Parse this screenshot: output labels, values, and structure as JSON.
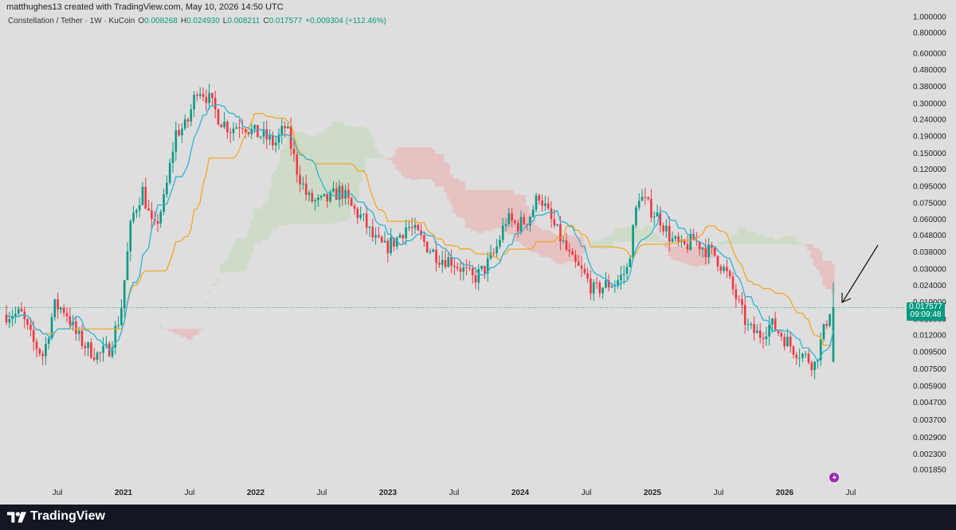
{
  "header": {
    "credit": "matthughes13 created with TradingView.com, May 10, 2026 14:50 UTC"
  },
  "legend": {
    "symbol": "Constellation / Tether · 1W · KuCoin",
    "o_label": "O",
    "o_value": "0.008268",
    "h_label": "H",
    "h_value": "0.024930",
    "l_label": "L",
    "l_value": "0.008211",
    "c_label": "C",
    "c_value": "0.017577",
    "change": "+0.009304 (+112.46%)"
  },
  "price_tag": {
    "price": "0.017577",
    "countdown": "09:09:48"
  },
  "footer": {
    "brand": "TradingView"
  },
  "colors": {
    "up": "#089981",
    "down": "#f23645",
    "tenkan": "#2bb3d6",
    "kijun": "#f5a623",
    "cloud_bear": "#e8b8b8",
    "cloud_bull": "#c8d9c0",
    "arrow": "#111111"
  },
  "chart_data": {
    "type": "candlestick",
    "scale": "log",
    "ylim": [
      0.0017,
      1.0
    ],
    "y_ticks": [
      "1.000000",
      "0.800000",
      "0.600000",
      "0.480000",
      "0.380000",
      "0.300000",
      "0.240000",
      "0.190000",
      "0.150000",
      "0.120000",
      "0.095000",
      "0.075000",
      "0.060000",
      "0.048000",
      "0.038000",
      "0.030000",
      "0.024000",
      "0.019000",
      "0.015000",
      "0.012000",
      "0.009500",
      "0.007500",
      "0.005900",
      "0.004700",
      "0.003700",
      "0.002900",
      "0.002300",
      "0.001850"
    ],
    "x_ticks": [
      {
        "label": "Jul",
        "date": "2020-07"
      },
      {
        "label": "2021",
        "date": "2021-01",
        "year": true
      },
      {
        "label": "Jul",
        "date": "2021-07"
      },
      {
        "label": "2022",
        "date": "2022-01",
        "year": true
      },
      {
        "label": "Jul",
        "date": "2022-07"
      },
      {
        "label": "2023",
        "date": "2023-01",
        "year": true
      },
      {
        "label": "Jul",
        "date": "2023-07"
      },
      {
        "label": "2024",
        "date": "2024-01",
        "year": true
      },
      {
        "label": "Jul",
        "date": "2024-07"
      },
      {
        "label": "2025",
        "date": "2025-01",
        "year": true
      },
      {
        "label": "Jul",
        "date": "2025-07"
      },
      {
        "label": "2026",
        "date": "2026-01",
        "year": true
      },
      {
        "label": "Jul",
        "date": "2026-07"
      }
    ],
    "price_path": [
      [
        "2020-04",
        0.016
      ],
      [
        "2020-05",
        0.011
      ],
      [
        "2020-06",
        0.009
      ],
      [
        "2020-07",
        0.018
      ],
      [
        "2020-08",
        0.017
      ],
      [
        "2020-09",
        0.012
      ],
      [
        "2020-10",
        0.01
      ],
      [
        "2020-11",
        0.009
      ],
      [
        "2020-12",
        0.01
      ],
      [
        "2021-01",
        0.016
      ],
      [
        "2021-02",
        0.06
      ],
      [
        "2021-03",
        0.09
      ],
      [
        "2021-04",
        0.05
      ],
      [
        "2021-05",
        0.08
      ],
      [
        "2021-06",
        0.2
      ],
      [
        "2021-07",
        0.22
      ],
      [
        "2021-08",
        0.38
      ],
      [
        "2021-09",
        0.32
      ],
      [
        "2021-10",
        0.24
      ],
      [
        "2021-11",
        0.21
      ],
      [
        "2021-12",
        0.23
      ],
      [
        "2022-01",
        0.2
      ],
      [
        "2022-02",
        0.19
      ],
      [
        "2022-03",
        0.17
      ],
      [
        "2022-04",
        0.22
      ],
      [
        "2022-05",
        0.12
      ],
      [
        "2022-06",
        0.08
      ],
      [
        "2022-07",
        0.075
      ],
      [
        "2022-08",
        0.08
      ],
      [
        "2022-09",
        0.09
      ],
      [
        "2022-10",
        0.07
      ],
      [
        "2022-11",
        0.06
      ],
      [
        "2022-12",
        0.045
      ],
      [
        "2023-01",
        0.04
      ],
      [
        "2023-02",
        0.045
      ],
      [
        "2023-03",
        0.055
      ],
      [
        "2023-04",
        0.048
      ],
      [
        "2023-05",
        0.04
      ],
      [
        "2023-06",
        0.035
      ],
      [
        "2023-07",
        0.034
      ],
      [
        "2023-08",
        0.03
      ],
      [
        "2023-09",
        0.026
      ],
      [
        "2023-10",
        0.03
      ],
      [
        "2023-11",
        0.038
      ],
      [
        "2023-12",
        0.06
      ],
      [
        "2024-01",
        0.055
      ],
      [
        "2024-02",
        0.06
      ],
      [
        "2024-03",
        0.085
      ],
      [
        "2024-04",
        0.06
      ],
      [
        "2024-05",
        0.045
      ],
      [
        "2024-06",
        0.033
      ],
      [
        "2024-07",
        0.028
      ],
      [
        "2024-08",
        0.022
      ],
      [
        "2024-09",
        0.024
      ],
      [
        "2024-10",
        0.025
      ],
      [
        "2024-11",
        0.03
      ],
      [
        "2024-12",
        0.085
      ],
      [
        "2025-01",
        0.07
      ],
      [
        "2025-02",
        0.06
      ],
      [
        "2025-03",
        0.045
      ],
      [
        "2025-04",
        0.04
      ],
      [
        "2025-05",
        0.045
      ],
      [
        "2025-06",
        0.04
      ],
      [
        "2025-07",
        0.036
      ],
      [
        "2025-08",
        0.028
      ],
      [
        "2025-09",
        0.019
      ],
      [
        "2025-10",
        0.013
      ],
      [
        "2025-11",
        0.012
      ],
      [
        "2025-12",
        0.014
      ],
      [
        "2026-01",
        0.012
      ],
      [
        "2026-02",
        0.01
      ],
      [
        "2026-03",
        0.009
      ],
      [
        "2026-04",
        0.008
      ],
      [
        "2026-05",
        0.0176
      ]
    ],
    "last_bar": {
      "open": 0.008268,
      "high": 0.02493,
      "low": 0.008211,
      "close": 0.017577
    }
  }
}
